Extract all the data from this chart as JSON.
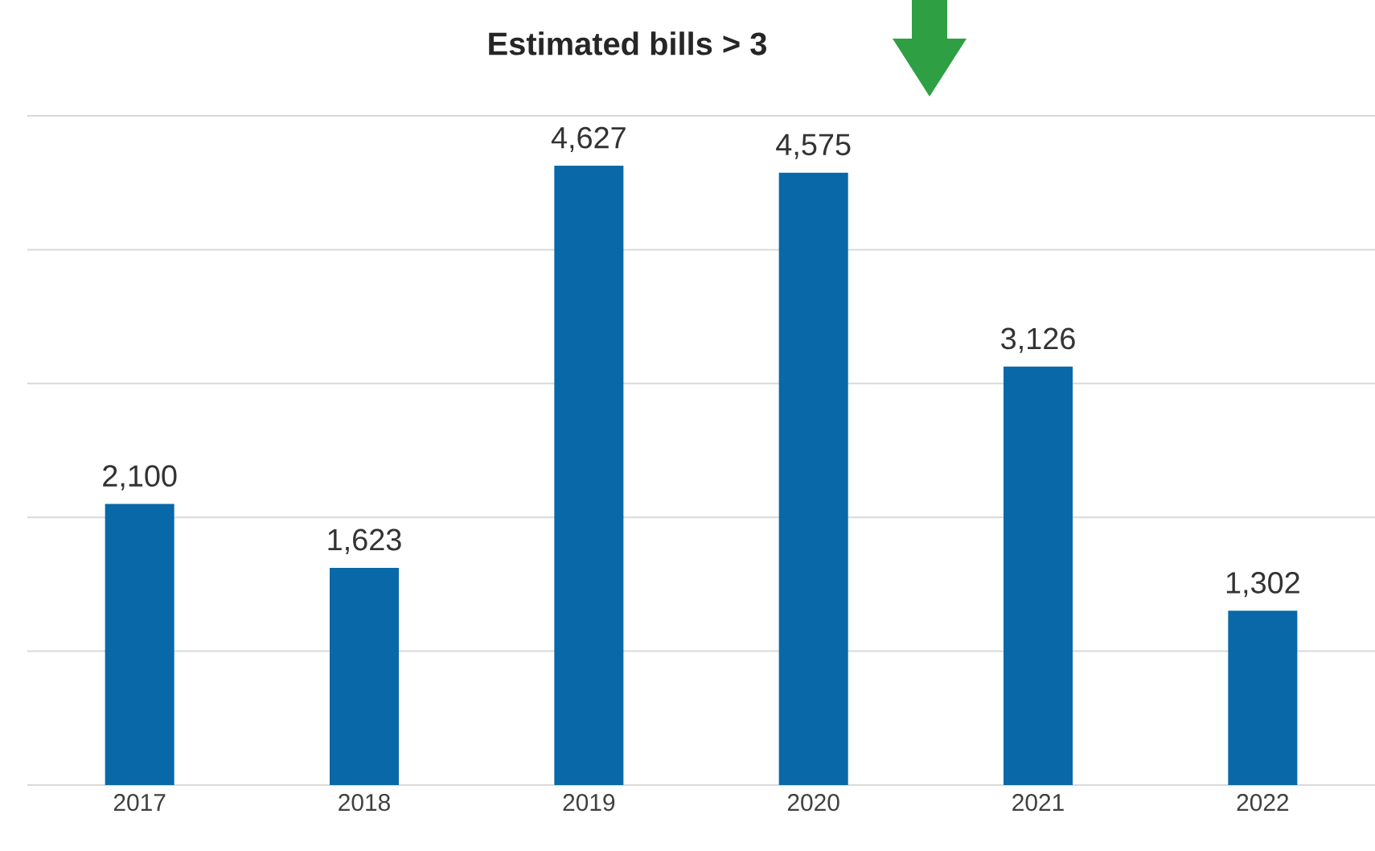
{
  "chart_data": {
    "type": "bar",
    "title": "Estimated bills > 3",
    "categories": [
      "2017",
      "2018",
      "2019",
      "2020",
      "2021",
      "2022"
    ],
    "values": [
      2100,
      1623,
      4627,
      4575,
      3126,
      1302
    ],
    "value_labels": [
      "2,100",
      "1,623",
      "4,627",
      "4,575",
      "3,126",
      "1,302"
    ],
    "color": "#0868a8",
    "ylim": [
      0,
      5000
    ],
    "yticks": [
      {
        "value": 0,
        "label": null
      },
      {
        "value": 1000,
        "label": null
      },
      {
        "value": 2000,
        "label": null
      },
      {
        "value": 3000,
        "label": null
      },
      {
        "value": 4000,
        "label": null
      },
      {
        "value": 5000,
        "label": null
      }
    ],
    "tick_labels": "x",
    "grid": "y"
  }
}
